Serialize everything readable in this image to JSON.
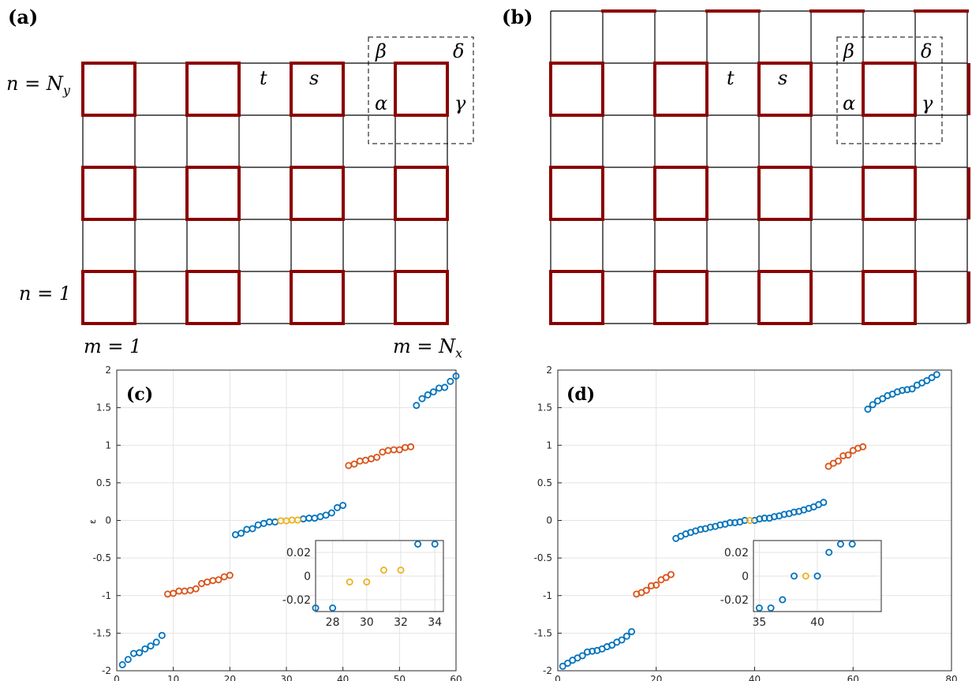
{
  "panel_labels": {
    "a": "(a)",
    "b": "(b)",
    "c": "(c)",
    "d": "(d)"
  },
  "lattice_labels": {
    "n_top": "n = N",
    "n_top_sub": "y",
    "n_bottom": "n = 1",
    "m_left": "m = 1",
    "m_right": "m = N",
    "m_right_sub": "x",
    "hop_t": "t",
    "hop_s": "s",
    "alpha": "α",
    "beta": "β",
    "gamma": "γ",
    "delta": "δ"
  },
  "colors": {
    "grid": "#000000",
    "plaquette": "#8b0000",
    "blue": "#0072bd",
    "orange": "#d95319",
    "yellow": "#edb120"
  },
  "chart_data": [
    {
      "id": "c",
      "type": "scatter",
      "ylabel": "ε",
      "xlim": [
        0,
        60
      ],
      "ylim": [
        -2,
        2
      ],
      "xticks": [
        "0",
        "10",
        "20",
        "30",
        "40",
        "50",
        "60"
      ],
      "yticks": [
        "-2",
        "-1.5",
        "-1",
        "-0.5",
        "0",
        "0.5",
        "1",
        "1.5",
        "2"
      ],
      "grid": true,
      "series": [
        {
          "color": "blue",
          "points": [
            [
              1,
              -1.92
            ],
            [
              2,
              -1.85
            ],
            [
              3,
              -1.77
            ],
            [
              4,
              -1.76
            ],
            [
              5,
              -1.71
            ],
            [
              6,
              -1.67
            ],
            [
              7,
              -1.62
            ],
            [
              8,
              -1.53
            ],
            [
              21,
              -0.19
            ],
            [
              22,
              -0.17
            ],
            [
              23,
              -0.12
            ],
            [
              24,
              -0.11
            ],
            [
              25,
              -0.06
            ],
            [
              26,
              -0.04
            ],
            [
              27,
              -0.02
            ],
            [
              28,
              -0.02
            ],
            [
              33,
              0.02
            ],
            [
              34,
              0.03
            ],
            [
              35,
              0.03
            ],
            [
              36,
              0.05
            ],
            [
              37,
              0.07
            ],
            [
              38,
              0.1
            ],
            [
              39,
              0.17
            ],
            [
              40,
              0.2
            ],
            [
              53,
              1.53
            ],
            [
              54,
              1.62
            ],
            [
              55,
              1.67
            ],
            [
              56,
              1.71
            ],
            [
              57,
              1.76
            ],
            [
              58,
              1.77
            ],
            [
              59,
              1.85
            ],
            [
              60,
              1.92
            ]
          ]
        },
        {
          "color": "orange",
          "points": [
            [
              9,
              -0.98
            ],
            [
              10,
              -0.97
            ],
            [
              11,
              -0.94
            ],
            [
              12,
              -0.94
            ],
            [
              13,
              -0.93
            ],
            [
              14,
              -0.91
            ],
            [
              15,
              -0.84
            ],
            [
              16,
              -0.82
            ],
            [
              17,
              -0.8
            ],
            [
              18,
              -0.79
            ],
            [
              19,
              -0.75
            ],
            [
              20,
              -0.73
            ],
            [
              41,
              0.73
            ],
            [
              42,
              0.75
            ],
            [
              43,
              0.79
            ],
            [
              44,
              0.8
            ],
            [
              45,
              0.82
            ],
            [
              46,
              0.84
            ],
            [
              47,
              0.91
            ],
            [
              48,
              0.93
            ],
            [
              49,
              0.94
            ],
            [
              50,
              0.94
            ],
            [
              51,
              0.97
            ],
            [
              52,
              0.98
            ]
          ]
        },
        {
          "color": "yellow",
          "points": [
            [
              29,
              -0.005
            ],
            [
              30,
              -0.005
            ],
            [
              31,
              0.005
            ],
            [
              32,
              0.005
            ]
          ]
        }
      ],
      "inset": {
        "xlim": [
          27,
          34.5
        ],
        "ylim": [
          -0.03,
          0.03
        ],
        "xticks": [
          "28",
          "30",
          "32",
          "34"
        ],
        "yticks": [
          "0.02",
          "0",
          "-0.02"
        ]
      }
    },
    {
      "id": "d",
      "type": "scatter",
      "xlim": [
        0,
        80
      ],
      "ylim": [
        -2,
        2
      ],
      "xticks": [
        "0",
        "20",
        "40",
        "60",
        "80"
      ],
      "yticks": [
        "-2",
        "-1.5",
        "-1",
        "-0.5",
        "0",
        "0.5",
        "1",
        "1.5",
        "2"
      ],
      "grid": true,
      "series": [
        {
          "color": "blue",
          "points": [
            [
              1,
              -1.94
            ],
            [
              2,
              -1.9
            ],
            [
              3,
              -1.86
            ],
            [
              4,
              -1.83
            ],
            [
              5,
              -1.8
            ],
            [
              6,
              -1.75
            ],
            [
              7,
              -1.74
            ],
            [
              8,
              -1.73
            ],
            [
              9,
              -1.71
            ],
            [
              10,
              -1.68
            ],
            [
              11,
              -1.66
            ],
            [
              12,
              -1.62
            ],
            [
              13,
              -1.59
            ],
            [
              14,
              -1.54
            ],
            [
              15,
              -1.48
            ],
            [
              24,
              -0.24
            ],
            [
              25,
              -0.21
            ],
            [
              26,
              -0.18
            ],
            [
              27,
              -0.16
            ],
            [
              28,
              -0.14
            ],
            [
              29,
              -0.12
            ],
            [
              30,
              -0.11
            ],
            [
              31,
              -0.09
            ],
            [
              32,
              -0.08
            ],
            [
              33,
              -0.06
            ],
            [
              34,
              -0.05
            ],
            [
              35,
              -0.03
            ],
            [
              36,
              -0.03
            ],
            [
              37,
              -0.02
            ],
            [
              38,
              0.0
            ],
            [
              40,
              0.0
            ],
            [
              41,
              0.02
            ],
            [
              42,
              0.03
            ],
            [
              43,
              0.03
            ],
            [
              44,
              0.05
            ],
            [
              45,
              0.06
            ],
            [
              46,
              0.08
            ],
            [
              47,
              0.09
            ],
            [
              48,
              0.11
            ],
            [
              49,
              0.12
            ],
            [
              50,
              0.14
            ],
            [
              51,
              0.16
            ],
            [
              52,
              0.18
            ],
            [
              53,
              0.21
            ],
            [
              54,
              0.24
            ],
            [
              63,
              1.48
            ],
            [
              64,
              1.54
            ],
            [
              65,
              1.59
            ],
            [
              66,
              1.62
            ],
            [
              67,
              1.66
            ],
            [
              68,
              1.68
            ],
            [
              69,
              1.71
            ],
            [
              70,
              1.73
            ],
            [
              71,
              1.74
            ],
            [
              72,
              1.75
            ],
            [
              73,
              1.8
            ],
            [
              74,
              1.83
            ],
            [
              75,
              1.86
            ],
            [
              76,
              1.9
            ],
            [
              77,
              1.94
            ]
          ]
        },
        {
          "color": "orange",
          "points": [
            [
              16,
              -0.98
            ],
            [
              17,
              -0.96
            ],
            [
              18,
              -0.93
            ],
            [
              19,
              -0.87
            ],
            [
              20,
              -0.86
            ],
            [
              21,
              -0.79
            ],
            [
              22,
              -0.76
            ],
            [
              23,
              -0.72
            ],
            [
              55,
              0.72
            ],
            [
              56,
              0.76
            ],
            [
              57,
              0.79
            ],
            [
              58,
              0.86
            ],
            [
              59,
              0.87
            ],
            [
              60,
              0.93
            ],
            [
              61,
              0.96
            ],
            [
              62,
              0.98
            ]
          ]
        },
        {
          "color": "yellow",
          "points": [
            [
              39,
              0.0
            ]
          ]
        }
      ],
      "inset": {
        "xlim": [
          34.5,
          45.5
        ],
        "ylim": [
          -0.03,
          0.03
        ],
        "xticks": [
          "35",
          "40"
        ],
        "yticks": [
          "0.02",
          "0",
          "-0.02"
        ],
        "points": [
          {
            "color": "blue",
            "points": [
              [
                35,
                -0.027
              ],
              [
                36,
                -0.027
              ],
              [
                37,
                -0.02
              ],
              [
                38,
                0.0
              ],
              [
                40,
                0.0
              ],
              [
                41,
                0.02
              ],
              [
                42,
                0.027
              ],
              [
                43,
                0.027
              ]
            ]
          },
          {
            "color": "yellow",
            "points": [
              [
                39,
                0.0
              ]
            ]
          }
        ]
      }
    }
  ]
}
